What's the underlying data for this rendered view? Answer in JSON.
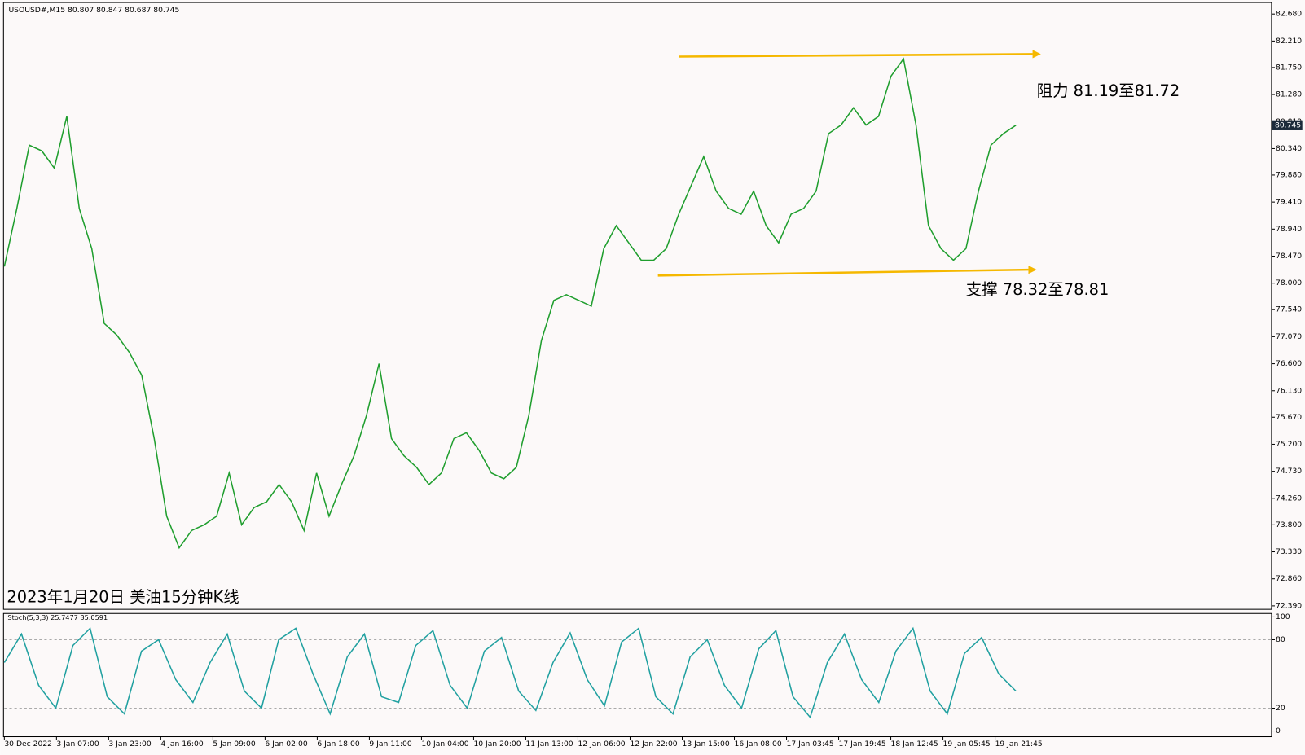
{
  "header": "USOUSD#,M15  80.807 80.847 80.687 80.745",
  "chart_data": [
    {
      "type": "line",
      "title": "2023年1月20日 美油15分钟K线",
      "annotations": [
        "阻力 81.19至81.72",
        "支撑 78.32至78.81"
      ],
      "current_price": {
        "value": 80.745,
        "label": "80.745"
      },
      "color": "#1f9e2e",
      "values": [
        78.29,
        79.3,
        80.4,
        80.3,
        80.0,
        80.9,
        79.3,
        78.6,
        77.3,
        77.1,
        76.8,
        76.4,
        75.3,
        73.95,
        73.4,
        73.7,
        73.8,
        73.95,
        74.7,
        73.8,
        74.1,
        74.2,
        74.5,
        74.2,
        73.7,
        74.7,
        73.95,
        74.5,
        75.0,
        75.7,
        76.6,
        75.3,
        75.0,
        74.8,
        74.5,
        74.7,
        75.3,
        75.4,
        75.1,
        74.7,
        74.6,
        74.8,
        75.7,
        77.0,
        77.7,
        77.8,
        77.7,
        77.6,
        78.6,
        79.0,
        78.7,
        78.4,
        78.4,
        78.6,
        79.2,
        79.7,
        80.2,
        79.6,
        79.3,
        79.2,
        79.6,
        79.0,
        78.7,
        79.2,
        79.3,
        79.6,
        80.6,
        80.75,
        81.05,
        80.75,
        80.9,
        81.6,
        81.9,
        80.75,
        79.0,
        78.6,
        78.4,
        78.6,
        79.6,
        80.4,
        80.6,
        80.745
      ],
      "ylim": [
        72.33,
        82.88
      ],
      "yticks": [
        {
          "value": 82.68,
          "label": "82.680"
        },
        {
          "value": 82.21,
          "label": "82.210"
        },
        {
          "value": 81.75,
          "label": "81.750"
        },
        {
          "value": 81.28,
          "label": "81.280"
        },
        {
          "value": 80.81,
          "label": "80.810"
        },
        {
          "value": 80.34,
          "label": "80.340"
        },
        {
          "value": 79.88,
          "label": "79.880"
        },
        {
          "value": 79.41,
          "label": "79.410"
        },
        {
          "value": 78.94,
          "label": "78.940"
        },
        {
          "value": 78.47,
          "label": "78.470"
        },
        {
          "value": 78,
          "label": "78.000"
        },
        {
          "value": 77.54,
          "label": "77.540"
        },
        {
          "value": 77.07,
          "label": "77.070"
        },
        {
          "value": 76.6,
          "label": "76.600"
        },
        {
          "value": 76.13,
          "label": "76.130"
        },
        {
          "value": 75.67,
          "label": "75.670"
        },
        {
          "value": 75.2,
          "label": "75.200"
        },
        {
          "value": 74.73,
          "label": "74.730"
        },
        {
          "value": 74.26,
          "label": "74.260"
        },
        {
          "value": 73.8,
          "label": "73.800"
        },
        {
          "value": 73.33,
          "label": "73.330"
        },
        {
          "value": 72.86,
          "label": "72.860"
        },
        {
          "value": 72.39,
          "label": "72.390"
        }
      ]
    },
    {
      "type": "line",
      "title": "Stoch(5,3,3) 25.7477 35.0591",
      "color": "#20a0a0",
      "values": [
        60,
        85,
        40,
        20,
        75,
        90,
        30,
        15,
        70,
        80,
        45,
        25,
        60,
        85,
        35,
        20,
        80,
        90,
        50,
        15,
        65,
        85,
        30,
        25,
        75,
        88,
        40,
        20,
        70,
        82,
        35,
        18,
        60,
        86,
        45,
        22,
        78,
        90,
        30,
        15,
        65,
        80,
        40,
        20,
        72,
        88,
        30,
        12,
        60,
        85,
        45,
        25,
        70,
        90,
        35,
        15,
        68,
        82,
        50,
        35
      ],
      "ylim": [
        -5,
        103
      ],
      "yticks": [
        0,
        20,
        80,
        100
      ],
      "grid": true,
      "x_labels": [
        "30 Dec 2022",
        "3 Jan 07:00",
        "3 Jan 23:00",
        "4 Jan 16:00",
        "5 Jan 09:00",
        "6 Jan 02:00",
        "6 Jan 18:00",
        "9 Jan 11:00",
        "10 Jan 04:00",
        "10 Jan 20:00",
        "11 Jan 13:00",
        "12 Jan 06:00",
        "12 Jan 22:00",
        "13 Jan 15:00",
        "16 Jan 08:00",
        "17 Jan 03:45",
        "17 Jan 19:45",
        "18 Jan 12:45",
        "19 Jan 05:45",
        "19 Jan 21:45"
      ]
    }
  ]
}
